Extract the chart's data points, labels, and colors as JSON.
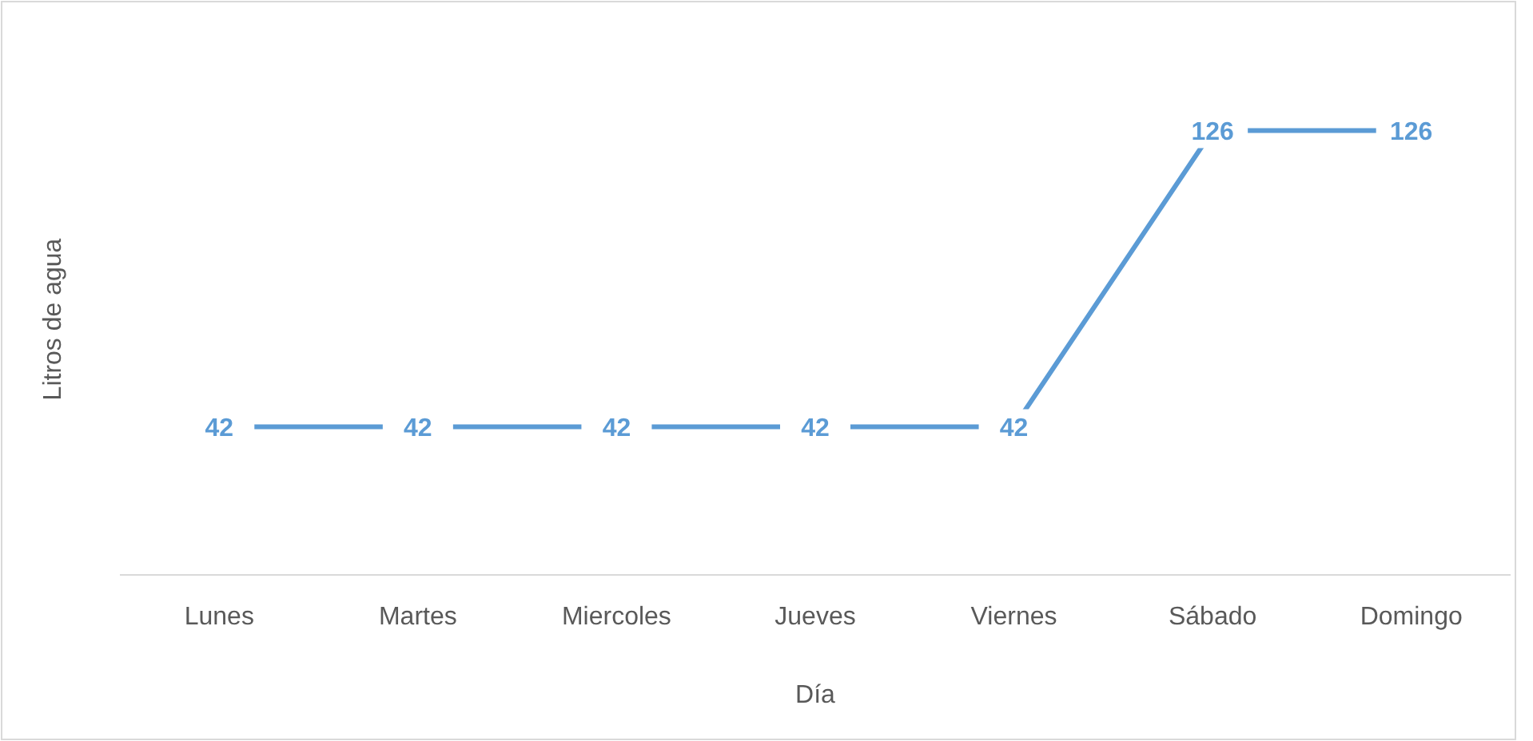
{
  "chart_data": {
    "type": "line",
    "xlabel": "Día",
    "ylabel": "Litros de agua",
    "categories": [
      "Lunes",
      "Martes",
      "Miercoles",
      "Jueves",
      "Viernes",
      "Sábado",
      "Domingo"
    ],
    "series": [
      {
        "color": "#5b9bd5",
        "values": [
          42,
          42,
          42,
          42,
          42,
          126,
          126
        ]
      }
    ],
    "data_labels": true,
    "line_style": "solid"
  }
}
